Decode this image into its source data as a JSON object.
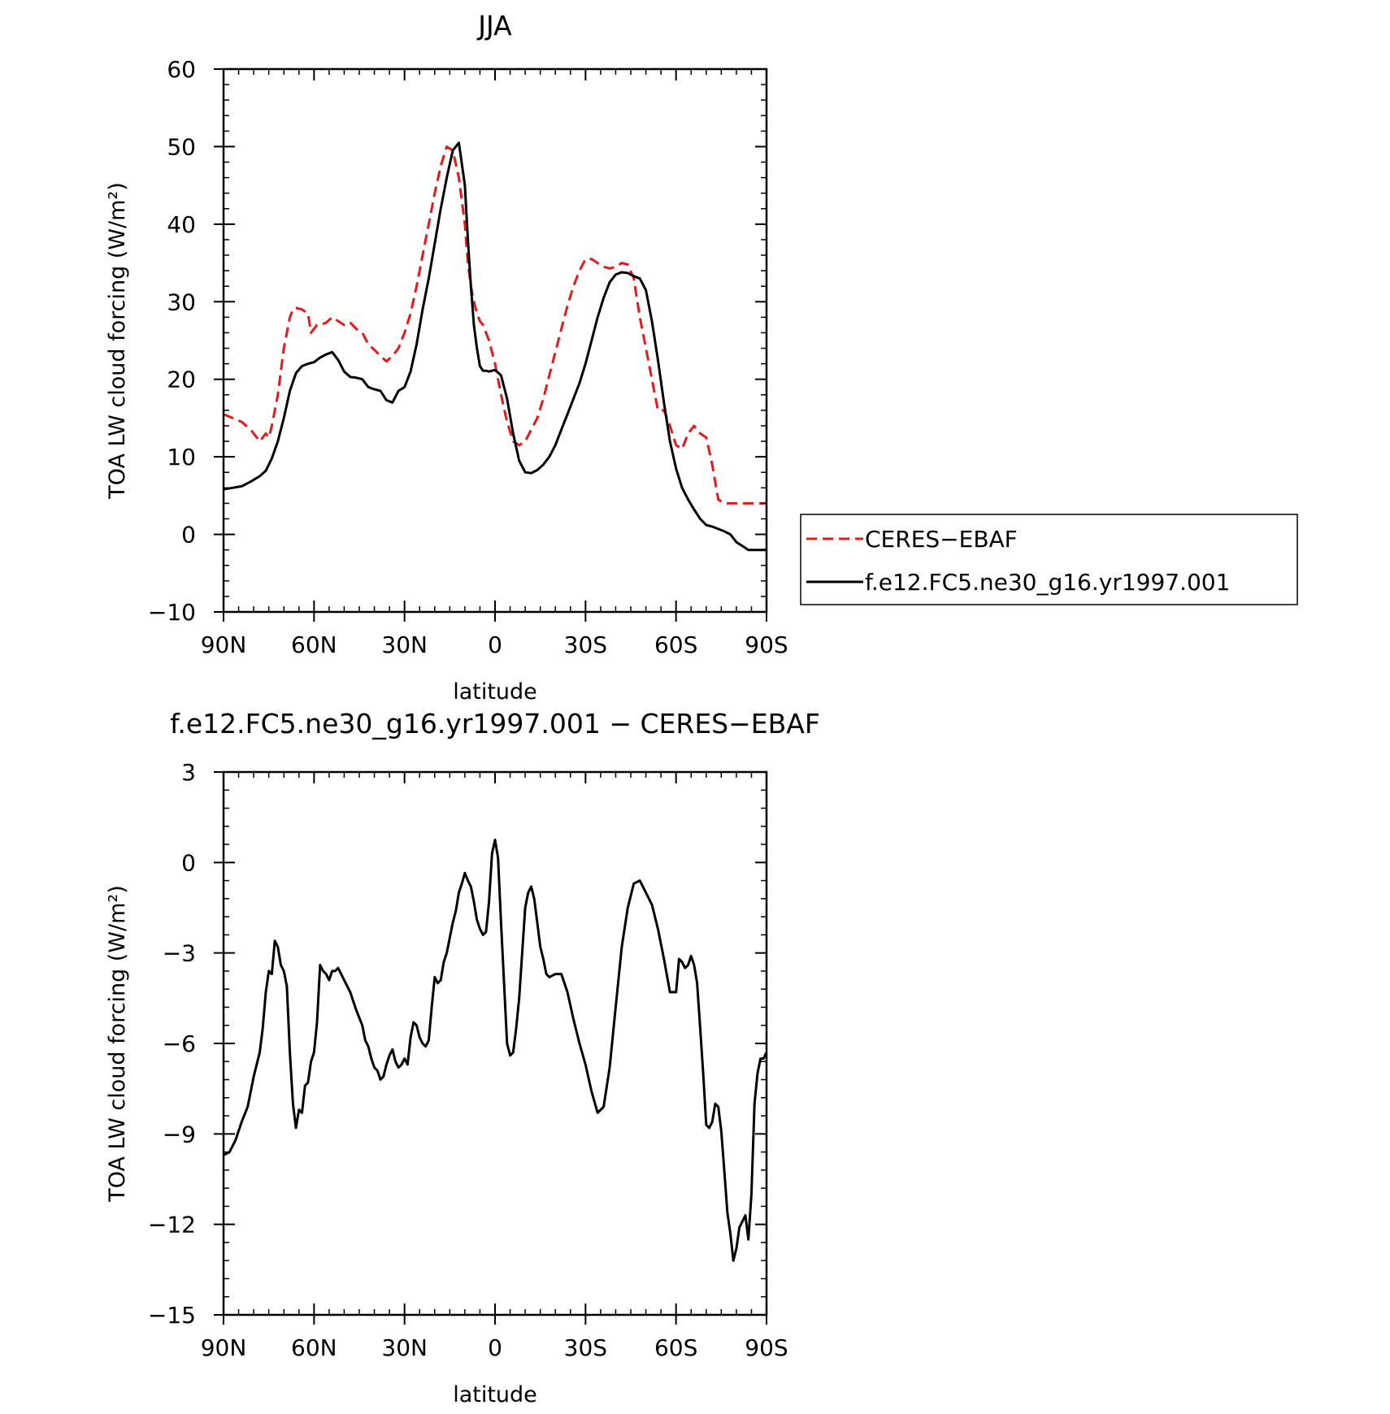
{
  "chart_data": [
    {
      "type": "line",
      "title": "JJA",
      "xlabel": "latitude",
      "ylabel": "TOA LW cloud forcing (W/m²)",
      "xlim": [
        90,
        -90
      ],
      "ylim": [
        -10,
        60
      ],
      "x_ticks": [
        {
          "value": 90,
          "label": "90N"
        },
        {
          "value": 60,
          "label": "60N"
        },
        {
          "value": 30,
          "label": "30N"
        },
        {
          "value": 0,
          "label": "0"
        },
        {
          "value": -30,
          "label": "30S"
        },
        {
          "value": -60,
          "label": "60S"
        },
        {
          "value": -90,
          "label": "90S"
        }
      ],
      "y_ticks": [
        {
          "value": 60,
          "label": "60"
        },
        {
          "value": 50,
          "label": "50"
        },
        {
          "value": 40,
          "label": "40"
        },
        {
          "value": 30,
          "label": "30"
        },
        {
          "value": 20,
          "label": "20"
        },
        {
          "value": 10,
          "label": "10"
        },
        {
          "value": 0,
          "label": "0"
        },
        {
          "value": -10,
          "label": "−10"
        }
      ],
      "grid": false,
      "legend_position": "right",
      "series": [
        {
          "name": "CERES−EBAF",
          "color": "#e01b1b",
          "dash": "dashed",
          "x": [
            90,
            87,
            84,
            81,
            78,
            76,
            75,
            74,
            72,
            70,
            68,
            67,
            66,
            64,
            62,
            61,
            60,
            59,
            58,
            56,
            54,
            52,
            50,
            48,
            46,
            44,
            42,
            40,
            38,
            36,
            34,
            32,
            30,
            28,
            26,
            24,
            22,
            20,
            18,
            16,
            14,
            12,
            10,
            9,
            8,
            7,
            6,
            5,
            4,
            3,
            2,
            0,
            -2,
            -4,
            -6,
            -8,
            -10,
            -12,
            -14,
            -16,
            -18,
            -20,
            -22,
            -24,
            -26,
            -28,
            -30,
            -32,
            -34,
            -36,
            -38,
            -40,
            -42,
            -44,
            -46,
            -48,
            -50,
            -52,
            -54,
            -56,
            -58,
            -60,
            -62,
            -64,
            -66,
            -68,
            -70,
            -72,
            -74,
            -76,
            -78,
            -80,
            -82,
            -84,
            -86,
            -88,
            -90
          ],
          "y": [
            15.5,
            15,
            14.5,
            13.5,
            12,
            13,
            12.5,
            14,
            18,
            24,
            28,
            29,
            29.2,
            29,
            28.5,
            26,
            26.5,
            27,
            27,
            27.3,
            28,
            27.5,
            27,
            27.3,
            26.5,
            26,
            24.5,
            23.8,
            23,
            22.3,
            23,
            24,
            26,
            28.5,
            32,
            36,
            40,
            44,
            47.5,
            50,
            49.5,
            46,
            40,
            35,
            32,
            30,
            28.5,
            27.5,
            27,
            26,
            25,
            22,
            18,
            14.5,
            12,
            11.5,
            12,
            13.5,
            15,
            17.5,
            20.5,
            23.5,
            26.5,
            29.5,
            32,
            34,
            35.5,
            35.5,
            35,
            34.5,
            34.3,
            34.5,
            35,
            34.8,
            33,
            28,
            24,
            20,
            16,
            16,
            14,
            11.5,
            11,
            13,
            14,
            13,
            12.5,
            9,
            4.5,
            4,
            4,
            4,
            4,
            4,
            4,
            4,
            4
          ]
        },
        {
          "name": "f.e12.FC5.ne30_g16.yr1997.001",
          "color": "#000000",
          "dash": "solid",
          "x": [
            90,
            87,
            84,
            81,
            78,
            76,
            74,
            72,
            70,
            68,
            66,
            64,
            62,
            60,
            58,
            56,
            54,
            52,
            50,
            48,
            46,
            44,
            42,
            40,
            38,
            36,
            34,
            32,
            30,
            28,
            26,
            24,
            22,
            20,
            18,
            16,
            14,
            12,
            10,
            9,
            8,
            7,
            6,
            5,
            4,
            3,
            2,
            0,
            -2,
            -4,
            -6,
            -8,
            -10,
            -12,
            -14,
            -16,
            -18,
            -20,
            -22,
            -24,
            -26,
            -28,
            -30,
            -32,
            -34,
            -36,
            -38,
            -40,
            -42,
            -44,
            -46,
            -48,
            -50,
            -52,
            -54,
            -56,
            -58,
            -60,
            -62,
            -64,
            -66,
            -68,
            -70,
            -72,
            -74,
            -76,
            -78,
            -80,
            -82,
            -84,
            -86,
            -88,
            -90
          ],
          "y": [
            5.8,
            6,
            6.2,
            6.8,
            7.5,
            8.2,
            9.8,
            12,
            15,
            18.5,
            20.8,
            21.7,
            22,
            22.2,
            22.8,
            23.2,
            23.5,
            22.5,
            21,
            20.3,
            20.2,
            20,
            19,
            18.7,
            18.5,
            17.3,
            17,
            18.5,
            19,
            21,
            24.5,
            29,
            33,
            37.5,
            42,
            46,
            49.5,
            50.5,
            45,
            38,
            32,
            27,
            24,
            21.7,
            21.1,
            21.1,
            21,
            21.2,
            20.5,
            17.5,
            13,
            9.5,
            8,
            7.9,
            8.3,
            9,
            10,
            11.5,
            13.5,
            15.5,
            17.5,
            19.5,
            22,
            25,
            28,
            30.5,
            32.5,
            33.5,
            33.8,
            33.7,
            33.3,
            33,
            31.5,
            27.5,
            22.5,
            17,
            12,
            8.5,
            6,
            4.5,
            3.2,
            2,
            1.2,
            1,
            0.7,
            0.4,
            0,
            -1,
            -1.5,
            -2,
            -2,
            -2,
            -2
          ]
        }
      ]
    },
    {
      "type": "line",
      "title": "f.e12.FC5.ne30_g16.yr1997.001 − CERES−EBAF",
      "xlabel": "latitude",
      "ylabel": "TOA LW cloud forcing (W/m²)",
      "xlim": [
        90,
        -90
      ],
      "ylim": [
        -15,
        3
      ],
      "x_ticks": [
        {
          "value": 90,
          "label": "90N"
        },
        {
          "value": 60,
          "label": "60N"
        },
        {
          "value": 30,
          "label": "30N"
        },
        {
          "value": 0,
          "label": "0"
        },
        {
          "value": -30,
          "label": "30S"
        },
        {
          "value": -60,
          "label": "60S"
        },
        {
          "value": -90,
          "label": "90S"
        }
      ],
      "y_ticks": [
        {
          "value": 3,
          "label": "3"
        },
        {
          "value": 0,
          "label": "0"
        },
        {
          "value": -3,
          "label": "−3"
        },
        {
          "value": -6,
          "label": "−6"
        },
        {
          "value": -9,
          "label": "−9"
        },
        {
          "value": -12,
          "label": "−12"
        },
        {
          "value": -15,
          "label": "−15"
        }
      ],
      "grid": false,
      "series": [
        {
          "name": "",
          "color": "#000000",
          "dash": "solid",
          "x": [
            90,
            88,
            86,
            84,
            82,
            80,
            78,
            77,
            76,
            75,
            74,
            73,
            72,
            71,
            70,
            69,
            68,
            67,
            66,
            65,
            64,
            63,
            62,
            61,
            60,
            59,
            58,
            57,
            56,
            55,
            54,
            53,
            52,
            50,
            48,
            46,
            44,
            43,
            42,
            41,
            40,
            39,
            38,
            37,
            36,
            35,
            34,
            33,
            32,
            31,
            30,
            29,
            28,
            27,
            26,
            25,
            24,
            23,
            22,
            21,
            20,
            19,
            18,
            17,
            16,
            15,
            14,
            13,
            12,
            11,
            10,
            9,
            8,
            7,
            6,
            5,
            4,
            3,
            2,
            1,
            0,
            -1,
            -2,
            -3,
            -4,
            -5,
            -6,
            -7,
            -8,
            -9,
            -10,
            -11,
            -12,
            -13,
            -14,
            -15,
            -16,
            -17,
            -18,
            -20,
            -22,
            -24,
            -26,
            -28,
            -30,
            -32,
            -34,
            -36,
            -38,
            -40,
            -42,
            -44,
            -46,
            -48,
            -50,
            -52,
            -54,
            -56,
            -58,
            -60,
            -61,
            -62,
            -63,
            -64,
            -65,
            -66,
            -67,
            -68,
            -69,
            -70,
            -71,
            -72,
            -73,
            -74,
            -75,
            -76,
            -77,
            -78,
            -79,
            -80,
            -81,
            -82,
            -83,
            -84,
            -85,
            -86,
            -87,
            -88,
            -89,
            -90
          ],
          "y": [
            -9.7,
            -9.6,
            -9.2,
            -8.6,
            -8.1,
            -7.1,
            -6.3,
            -5.5,
            -4.3,
            -3.6,
            -3.7,
            -2.6,
            -2.8,
            -3.4,
            -3.6,
            -4.1,
            -6.3,
            -8.0,
            -8.8,
            -8.2,
            -8.3,
            -7.4,
            -7.3,
            -6.6,
            -6.3,
            -5.3,
            -3.4,
            -3.6,
            -3.7,
            -3.9,
            -3.6,
            -3.6,
            -3.5,
            -3.9,
            -4.3,
            -4.9,
            -5.4,
            -5.9,
            -6.1,
            -6.5,
            -6.8,
            -6.9,
            -7.2,
            -7.1,
            -6.7,
            -6.4,
            -6.2,
            -6.6,
            -6.8,
            -6.7,
            -6.5,
            -6.7,
            -5.8,
            -5.3,
            -5.4,
            -5.8,
            -6.0,
            -6.1,
            -5.9,
            -4.8,
            -3.8,
            -4.0,
            -3.9,
            -3.3,
            -3.0,
            -2.5,
            -2.0,
            -1.6,
            -1.0,
            -0.7,
            -0.35,
            -0.6,
            -0.8,
            -1.3,
            -1.9,
            -2.2,
            -2.4,
            -2.3,
            -1.3,
            0.3,
            0.75,
            0.15,
            -2.0,
            -4.0,
            -6.0,
            -6.4,
            -6.3,
            -5.5,
            -4.5,
            -3.0,
            -1.5,
            -1.0,
            -0.8,
            -1.2,
            -2.0,
            -2.8,
            -3.2,
            -3.7,
            -3.8,
            -3.7,
            -3.7,
            -4.3,
            -5.2,
            -6.0,
            -6.7,
            -7.6,
            -8.3,
            -8.1,
            -6.8,
            -4.8,
            -2.8,
            -1.5,
            -0.7,
            -0.6,
            -1.0,
            -1.4,
            -2.2,
            -3.2,
            -4.3,
            -4.3,
            -3.2,
            -3.3,
            -3.5,
            -3.4,
            -3.1,
            -3.4,
            -4.0,
            -5.5,
            -7.0,
            -8.7,
            -8.8,
            -8.6,
            -8.0,
            -8.1,
            -8.9,
            -10.2,
            -11.6,
            -12.3,
            -13.2,
            -12.8,
            -12.1,
            -11.9,
            -11.7,
            -12.5,
            -11.0,
            -8.0,
            -7.0,
            -6.5,
            -6.5,
            -6.3
          ]
        }
      ]
    }
  ]
}
